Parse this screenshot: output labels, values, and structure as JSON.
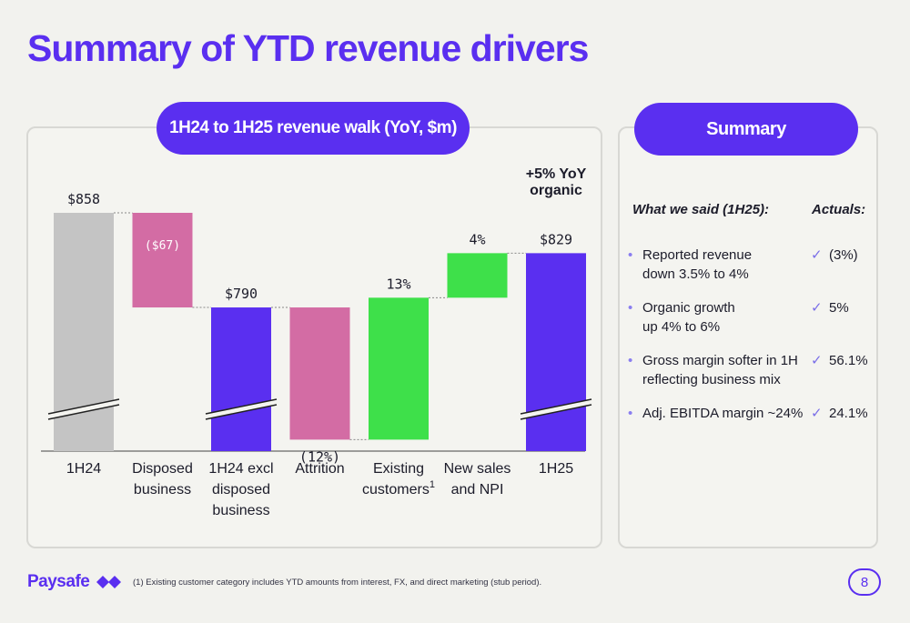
{
  "title": "Summary of YTD revenue drivers",
  "chart_title": "1H24 to 1H25 revenue walk (YoY, $m)",
  "chart_annotation": [
    "+5% YoY",
    "organic"
  ],
  "chart_data": {
    "type": "bar",
    "subtype": "waterfall",
    "categories": [
      "1H24",
      "Disposed business",
      "1H24 excl disposed business",
      "Attrition",
      "Existing customers",
      "New sales and NPI",
      "1H25"
    ],
    "category_lines": [
      [
        "1H24"
      ],
      [
        "Disposed",
        "business"
      ],
      [
        "1H24 excl",
        "disposed",
        "business"
      ],
      [
        "Attrition"
      ],
      [
        "Existing",
        "customers"
      ],
      [
        "New sales",
        "and NPI"
      ],
      [
        "1H25"
      ]
    ],
    "footnote_marks": [
      "",
      "",
      "",
      "",
      "1",
      "",
      ""
    ],
    "bars": [
      {
        "category": "1H24",
        "kind": "total",
        "start": 0,
        "end": 858,
        "label": "$858",
        "color": "#c4c4c4",
        "axis_break": true
      },
      {
        "category": "Disposed business",
        "kind": "delta",
        "start": 858,
        "end": 790,
        "label": "($67)",
        "color": "#d36ca4",
        "axis_break": false
      },
      {
        "category": "1H24 excl disposed business",
        "kind": "total",
        "start": 0,
        "end": 790,
        "label": "$790",
        "color": "#5a2ff0",
        "axis_break": true
      },
      {
        "category": "Attrition",
        "kind": "delta",
        "start": 790,
        "end": 695,
        "label": "(12%)",
        "color": "#d36ca4",
        "axis_break": false
      },
      {
        "category": "Existing customers",
        "kind": "delta",
        "start": 695,
        "end": 797,
        "label": "13%",
        "color": "#3ee04a",
        "axis_break": false
      },
      {
        "category": "New sales and NPI",
        "kind": "delta",
        "start": 797,
        "end": 829,
        "label": "4%",
        "color": "#3ee04a",
        "axis_break": false
      },
      {
        "category": "1H25",
        "kind": "total",
        "start": 0,
        "end": 829,
        "label": "$829",
        "color": "#5a2ff0",
        "axis_break": true
      }
    ],
    "title": "1H24 to 1H25 revenue walk (YoY, $m)"
  },
  "summary": {
    "pill": "Summary",
    "col_said": "What we said (1H25):",
    "col_actuals": "Actuals:",
    "check_icon": "✓",
    "bullet_icon": "•",
    "rows": [
      {
        "said_lines": [
          "Reported revenue",
          "down 3.5% to 4%"
        ],
        "actual": "(3%)"
      },
      {
        "said_lines": [
          "Organic growth",
          "up 4% to 6%"
        ],
        "actual": "5%"
      },
      {
        "said_lines": [
          "Gross margin softer in 1H",
          "reflecting business mix"
        ],
        "actual": "56.1%"
      },
      {
        "said_lines": [
          "Adj. EBITDA margin ~24%"
        ],
        "actual": "24.1%"
      }
    ]
  },
  "footer": {
    "logo": "Paysafe",
    "footnote": "(1) Existing customer category includes YTD amounts from interest, FX, and direct marketing (stub period).",
    "page": "8"
  },
  "colors": {
    "accent": "#5a2ff0",
    "grey": "#c4c4c4",
    "pink": "#d36ca4",
    "green": "#3ee04a"
  }
}
